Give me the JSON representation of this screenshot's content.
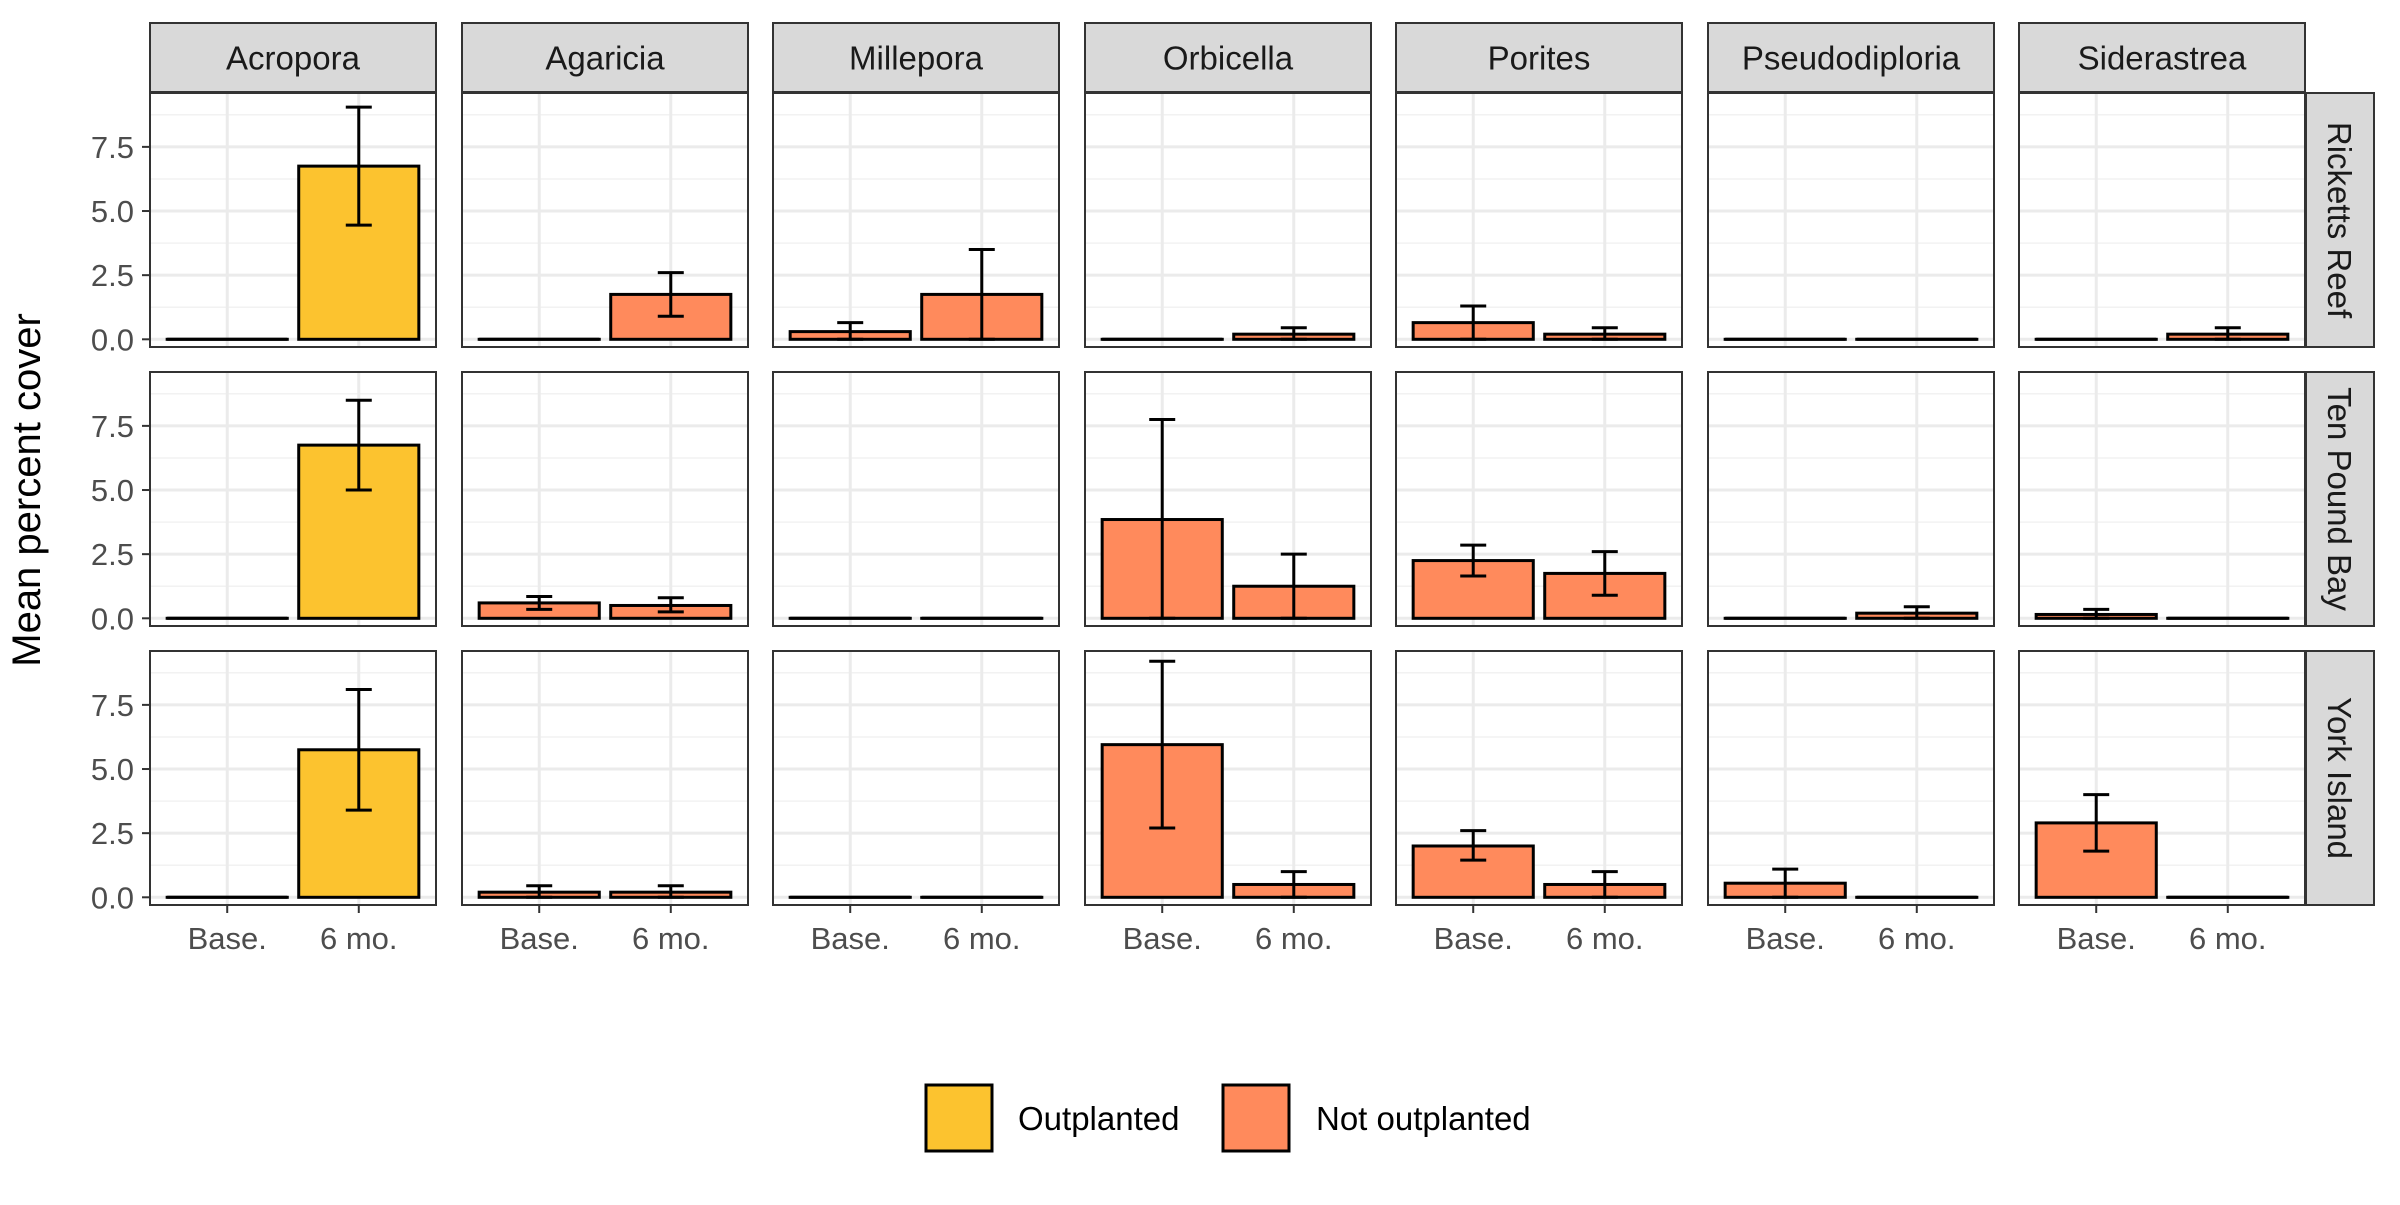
{
  "chart_data": {
    "type": "bar",
    "ylabel": "Mean percent cover",
    "xlabel": "",
    "ylim": [
      -0.3,
      9.6
    ],
    "yticks": [
      "0.0",
      "2.5",
      "5.0",
      "7.5"
    ],
    "ytick_values": [
      0,
      2.5,
      5,
      7.5
    ],
    "categories": [
      "Base.",
      "6 mo."
    ],
    "columns": [
      "Acropora",
      "Agaricia",
      "Millepora",
      "Orbicella",
      "Porites",
      "Pseudodiploria",
      "Siderastrea"
    ],
    "rows": [
      "Ricketts Reef",
      "Ten Pound Bay",
      "York Island"
    ],
    "legend": {
      "position": "bottom",
      "entries": [
        {
          "name": "Outplanted",
          "color": "#FCC32F"
        },
        {
          "name": "Not outplanted",
          "color": "#FF8A5C"
        }
      ]
    },
    "grid": true,
    "panels": [
      {
        "row": "Ricketts Reef",
        "column": "Acropora",
        "group": "Outplanted",
        "values": [
          0,
          6.75
        ],
        "errors": [
          [
            0,
            0
          ],
          [
            4.45,
            9.05
          ]
        ]
      },
      {
        "row": "Ricketts Reef",
        "column": "Agaricia",
        "group": "Not outplanted",
        "values": [
          0,
          1.75
        ],
        "errors": [
          [
            0,
            0
          ],
          [
            0.9,
            2.6
          ]
        ]
      },
      {
        "row": "Ricketts Reef",
        "column": "Millepora",
        "group": "Not outplanted",
        "values": [
          0.3,
          1.75
        ],
        "errors": [
          [
            0,
            0.65
          ],
          [
            0,
            3.5
          ]
        ]
      },
      {
        "row": "Ricketts Reef",
        "column": "Orbicella",
        "group": "Not outplanted",
        "values": [
          0,
          0.2
        ],
        "errors": [
          [
            0,
            0
          ],
          [
            0,
            0.45
          ]
        ]
      },
      {
        "row": "Ricketts Reef",
        "column": "Porites",
        "group": "Not outplanted",
        "values": [
          0.65,
          0.2
        ],
        "errors": [
          [
            0,
            1.3
          ],
          [
            0,
            0.45
          ]
        ]
      },
      {
        "row": "Ricketts Reef",
        "column": "Pseudodiploria",
        "group": "Not outplanted",
        "values": [
          0,
          0
        ],
        "errors": [
          [
            0,
            0
          ],
          [
            0,
            0
          ]
        ]
      },
      {
        "row": "Ricketts Reef",
        "column": "Siderastrea",
        "group": "Not outplanted",
        "values": [
          0,
          0.2
        ],
        "errors": [
          [
            0,
            0
          ],
          [
            0,
            0.45
          ]
        ]
      },
      {
        "row": "Ten Pound Bay",
        "column": "Acropora",
        "group": "Outplanted",
        "values": [
          0,
          6.75
        ],
        "errors": [
          [
            0,
            0
          ],
          [
            5.0,
            8.5
          ]
        ]
      },
      {
        "row": "Ten Pound Bay",
        "column": "Agaricia",
        "group": "Not outplanted",
        "values": [
          0.6,
          0.5
        ],
        "errors": [
          [
            0.35,
            0.85
          ],
          [
            0.25,
            0.8
          ]
        ]
      },
      {
        "row": "Ten Pound Bay",
        "column": "Millepora",
        "group": "Not outplanted",
        "values": [
          0,
          0
        ],
        "errors": [
          [
            0,
            0
          ],
          [
            0,
            0
          ]
        ]
      },
      {
        "row": "Ten Pound Bay",
        "column": "Orbicella",
        "group": "Not outplanted",
        "values": [
          3.85,
          1.25
        ],
        "errors": [
          [
            0,
            7.75
          ],
          [
            0,
            2.5
          ]
        ]
      },
      {
        "row": "Ten Pound Bay",
        "column": "Porites",
        "group": "Not outplanted",
        "values": [
          2.25,
          1.75
        ],
        "errors": [
          [
            1.65,
            2.85
          ],
          [
            0.9,
            2.6
          ]
        ]
      },
      {
        "row": "Ten Pound Bay",
        "column": "Pseudodiploria",
        "group": "Not outplanted",
        "values": [
          0,
          0.2
        ],
        "errors": [
          [
            0,
            0
          ],
          [
            0,
            0.45
          ]
        ]
      },
      {
        "row": "Ten Pound Bay",
        "column": "Siderastrea",
        "group": "Not outplanted",
        "values": [
          0.15,
          0
        ],
        "errors": [
          [
            0,
            0.35
          ],
          [
            0,
            0
          ]
        ]
      },
      {
        "row": "York Island",
        "column": "Acropora",
        "group": "Outplanted",
        "values": [
          0,
          5.75
        ],
        "errors": [
          [
            0,
            0
          ],
          [
            3.4,
            8.1
          ]
        ]
      },
      {
        "row": "York Island",
        "column": "Agaricia",
        "group": "Not outplanted",
        "values": [
          0.2,
          0.2
        ],
        "errors": [
          [
            0,
            0.45
          ],
          [
            0,
            0.45
          ]
        ]
      },
      {
        "row": "York Island",
        "column": "Millepora",
        "group": "Not outplanted",
        "values": [
          0,
          0
        ],
        "errors": [
          [
            0,
            0
          ],
          [
            0,
            0
          ]
        ]
      },
      {
        "row": "York Island",
        "column": "Orbicella",
        "group": "Not outplanted",
        "values": [
          5.95,
          0.5
        ],
        "errors": [
          [
            2.7,
            9.2
          ],
          [
            0,
            1.0
          ]
        ]
      },
      {
        "row": "York Island",
        "column": "Porites",
        "group": "Not outplanted",
        "values": [
          2.0,
          0.5
        ],
        "errors": [
          [
            1.45,
            2.6
          ],
          [
            0,
            1.0
          ]
        ]
      },
      {
        "row": "York Island",
        "column": "Pseudodiploria",
        "group": "Not outplanted",
        "values": [
          0.55,
          0
        ],
        "errors": [
          [
            0,
            1.1
          ],
          [
            0,
            0
          ]
        ]
      },
      {
        "row": "York Island",
        "column": "Siderastrea",
        "group": "Not outplanted",
        "values": [
          2.9,
          0
        ],
        "errors": [
          [
            1.8,
            4.0
          ],
          [
            0,
            0
          ]
        ]
      }
    ]
  }
}
